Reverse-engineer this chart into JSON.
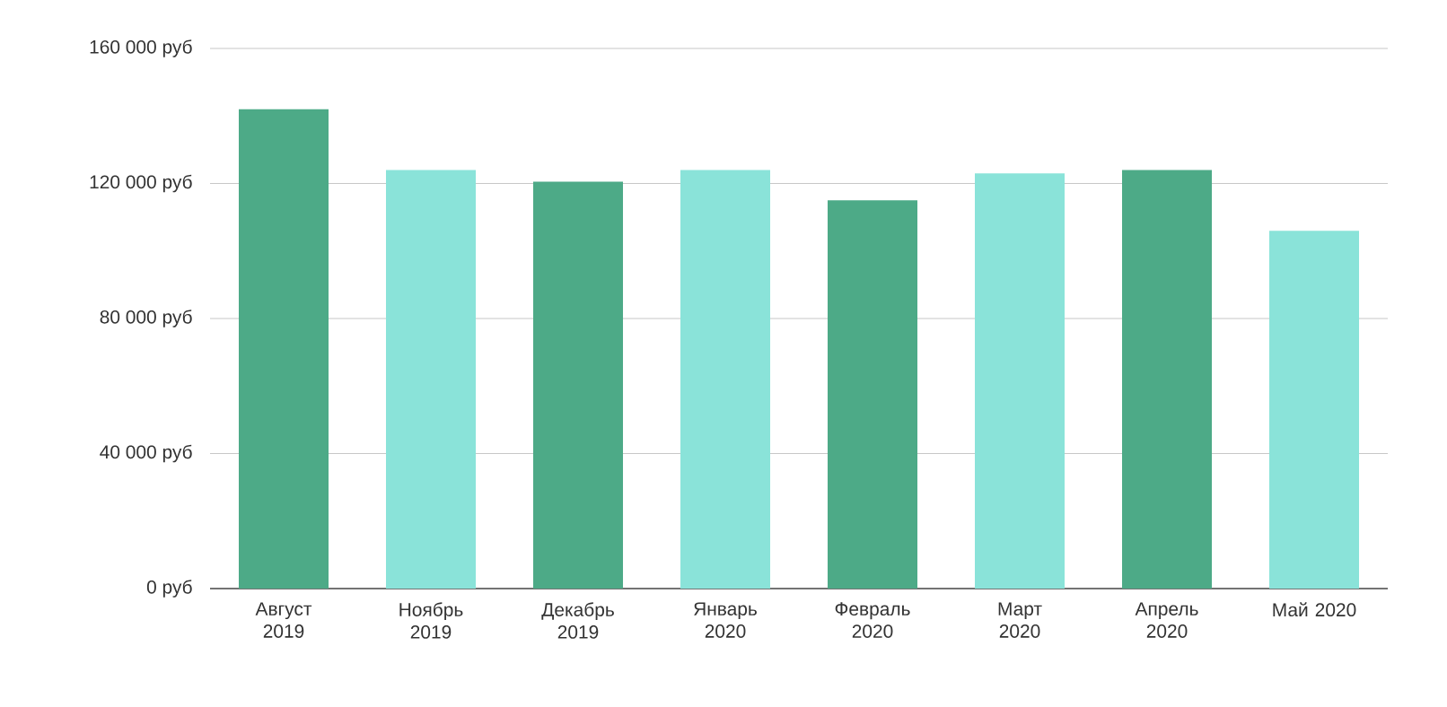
{
  "chart_data": {
    "type": "bar",
    "categories": [
      "Август 2019",
      "Ноябрь 2019",
      "Декабрь 2019",
      "Январь 2020",
      "Февраль 2020",
      "Март 2020",
      "Апрель 2020",
      "Май 2020"
    ],
    "values": [
      142000,
      124000,
      120500,
      124000,
      115000,
      123000,
      124000,
      106000
    ],
    "colors": [
      "#4daa87",
      "#8ae3d9",
      "#4daa87",
      "#8ae3d9",
      "#4daa87",
      "#8ae3d9",
      "#4daa87",
      "#8ae3d9"
    ],
    "ylim": [
      0,
      160000
    ],
    "yticks": [
      {
        "value": 0,
        "label": "0 руб"
      },
      {
        "value": 40000,
        "label": "40 000 руб"
      },
      {
        "value": 80000,
        "label": "80 000 руб"
      },
      {
        "value": 120000,
        "label": "120 000 руб"
      },
      {
        "value": 160000,
        "label": "160 000 руб"
      }
    ],
    "grid": "y"
  }
}
